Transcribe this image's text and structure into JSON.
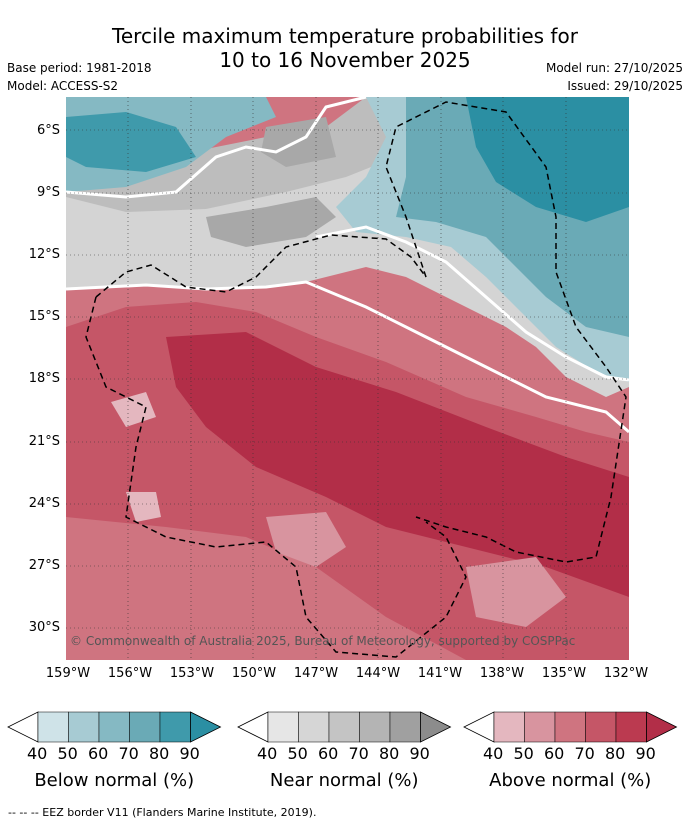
{
  "title_line1": "Tercile maximum temperature probabilities for",
  "title_line2": "10 to 16 November 2025",
  "base_period": "Base period: 1981-2018",
  "model": "Model: ACCESS-S2",
  "model_run": "Model run: 27/10/2025",
  "issued": "Issued: 29/10/2025",
  "copyright": "© Commonwealth of Australia 2025, Bureau of Meteorology, supported by COSPPac",
  "lat_labels": [
    "6°S",
    "9°S",
    "12°S",
    "15°S",
    "18°S",
    "21°S",
    "24°S",
    "27°S",
    "30°S"
  ],
  "lon_labels": [
    "159°W",
    "156°W",
    "153°W",
    "150°W",
    "147°W",
    "144°W",
    "141°W",
    "138°W",
    "135°W",
    "132°W"
  ],
  "colorbars": [
    {
      "title": "Below normal (%)",
      "ticks": [
        "40",
        "50",
        "60",
        "70",
        "80",
        "90"
      ],
      "colors": [
        "#cfe3e8",
        "#a7cbd3",
        "#85b9c3",
        "#6aaab6",
        "#3f9aab",
        "#2b8fa3"
      ]
    },
    {
      "title": "Near normal (%)",
      "ticks": [
        "40",
        "50",
        "60",
        "70",
        "80",
        "90"
      ],
      "colors": [
        "#e6e6e6",
        "#d6d6d6",
        "#c4c4c4",
        "#b4b4b4",
        "#a0a0a0",
        "#8c8c8c"
      ]
    },
    {
      "title": "Above normal (%)",
      "ticks": [
        "40",
        "50",
        "60",
        "70",
        "80",
        "90"
      ],
      "colors": [
        "#e4b7bf",
        "#d8949f",
        "#cf7480",
        "#c55667",
        "#bb3a50",
        "#b22e48"
      ]
    }
  ],
  "footer": "--  --  -- EEZ border V11 (Flanders Marine Institute, 2019)."
}
